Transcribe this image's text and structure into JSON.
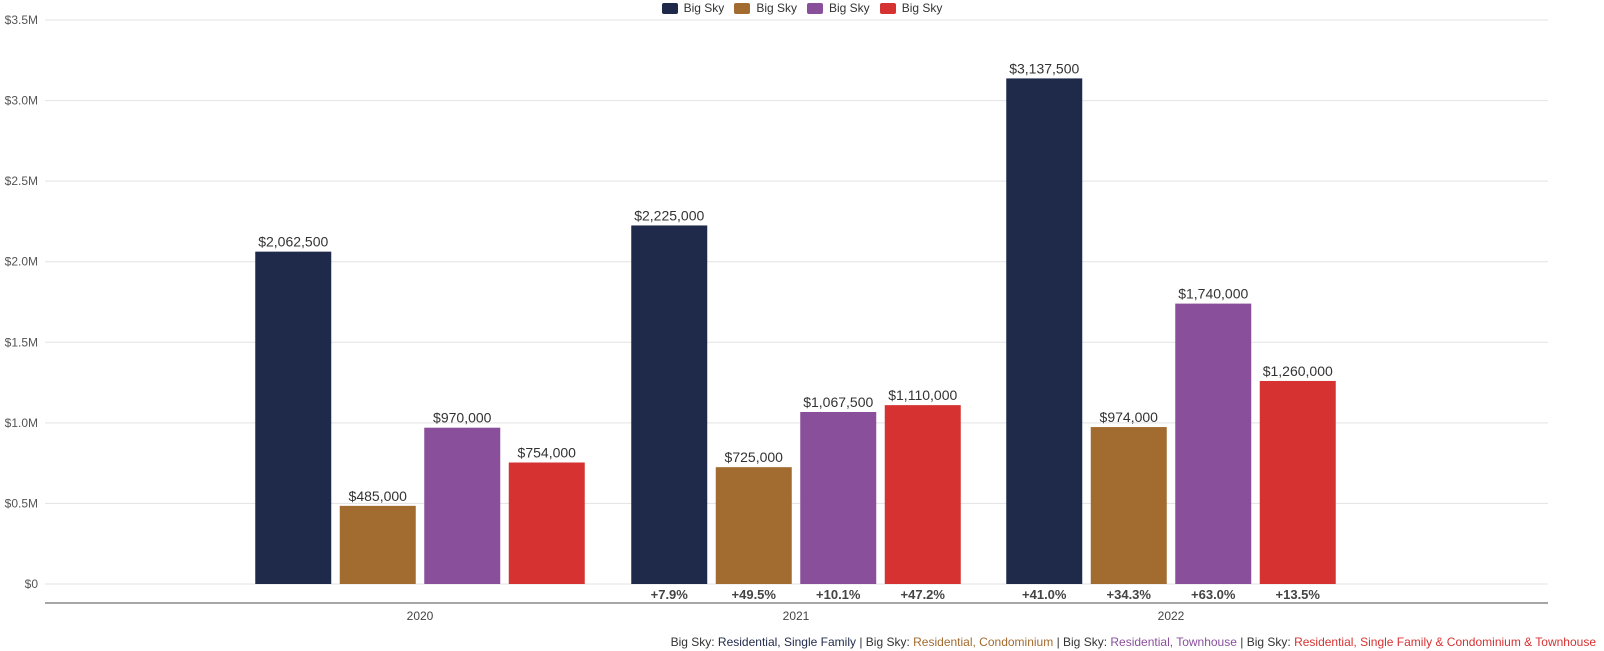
{
  "chart_data": {
    "type": "bar",
    "title": "",
    "xlabel": "",
    "ylabel": "",
    "ylim": [
      0,
      3500000
    ],
    "yticks": [
      {
        "value": 0,
        "label": "$0"
      },
      {
        "value": 500000,
        "label": "$0.5M"
      },
      {
        "value": 1000000,
        "label": "$1.0M"
      },
      {
        "value": 1500000,
        "label": "$1.5M"
      },
      {
        "value": 2000000,
        "label": "$2.0M"
      },
      {
        "value": 2500000,
        "label": "$2.5M"
      },
      {
        "value": 3000000,
        "label": "$3.0M"
      },
      {
        "value": 3500000,
        "label": "$3.5M"
      }
    ],
    "grid": true,
    "legend_position": "top-center",
    "categories": [
      "2020",
      "2021",
      "2022"
    ],
    "series": [
      {
        "name": "Big Sky",
        "color": "#1f2a4a",
        "values": [
          2062500,
          2225000,
          3137500
        ],
        "labels": [
          "$2,062,500",
          "$2,225,000",
          "$3,137,500"
        ],
        "changes": [
          "",
          "+7.9%",
          "+41.0%"
        ]
      },
      {
        "name": "Big Sky",
        "color": "#a26b2f",
        "values": [
          485000,
          725000,
          974000
        ],
        "labels": [
          "$485,000",
          "$725,000",
          "$974,000"
        ],
        "changes": [
          "",
          "+49.5%",
          "+34.3%"
        ]
      },
      {
        "name": "Big Sky",
        "color": "#8a4f9b",
        "values": [
          970000,
          1067500,
          1740000
        ],
        "labels": [
          "$970,000",
          "$1,067,500",
          "$1,740,000"
        ],
        "changes": [
          "",
          "+10.1%",
          "+63.0%"
        ]
      },
      {
        "name": "Big Sky",
        "color": "#d63232",
        "values": [
          754000,
          1110000,
          1260000
        ],
        "labels": [
          "$754,000",
          "$1,110,000",
          "$1,260,000"
        ],
        "changes": [
          "",
          "+47.2%",
          "+13.5%"
        ]
      }
    ]
  },
  "footer": {
    "items": [
      {
        "prefix": "Big Sky: ",
        "text": "Residential, Single Family",
        "color": "#1f2a4a"
      },
      {
        "prefix": "Big Sky: ",
        "text": "Residential, Condominium",
        "color": "#a26b2f"
      },
      {
        "prefix": "Big Sky: ",
        "text": "Residential, Townhouse",
        "color": "#8a4f9b"
      },
      {
        "prefix": "Big Sky: ",
        "text": "Residential, Single Family & Condominium & Townhouse",
        "color": "#d63232"
      }
    ],
    "separator": " | "
  }
}
